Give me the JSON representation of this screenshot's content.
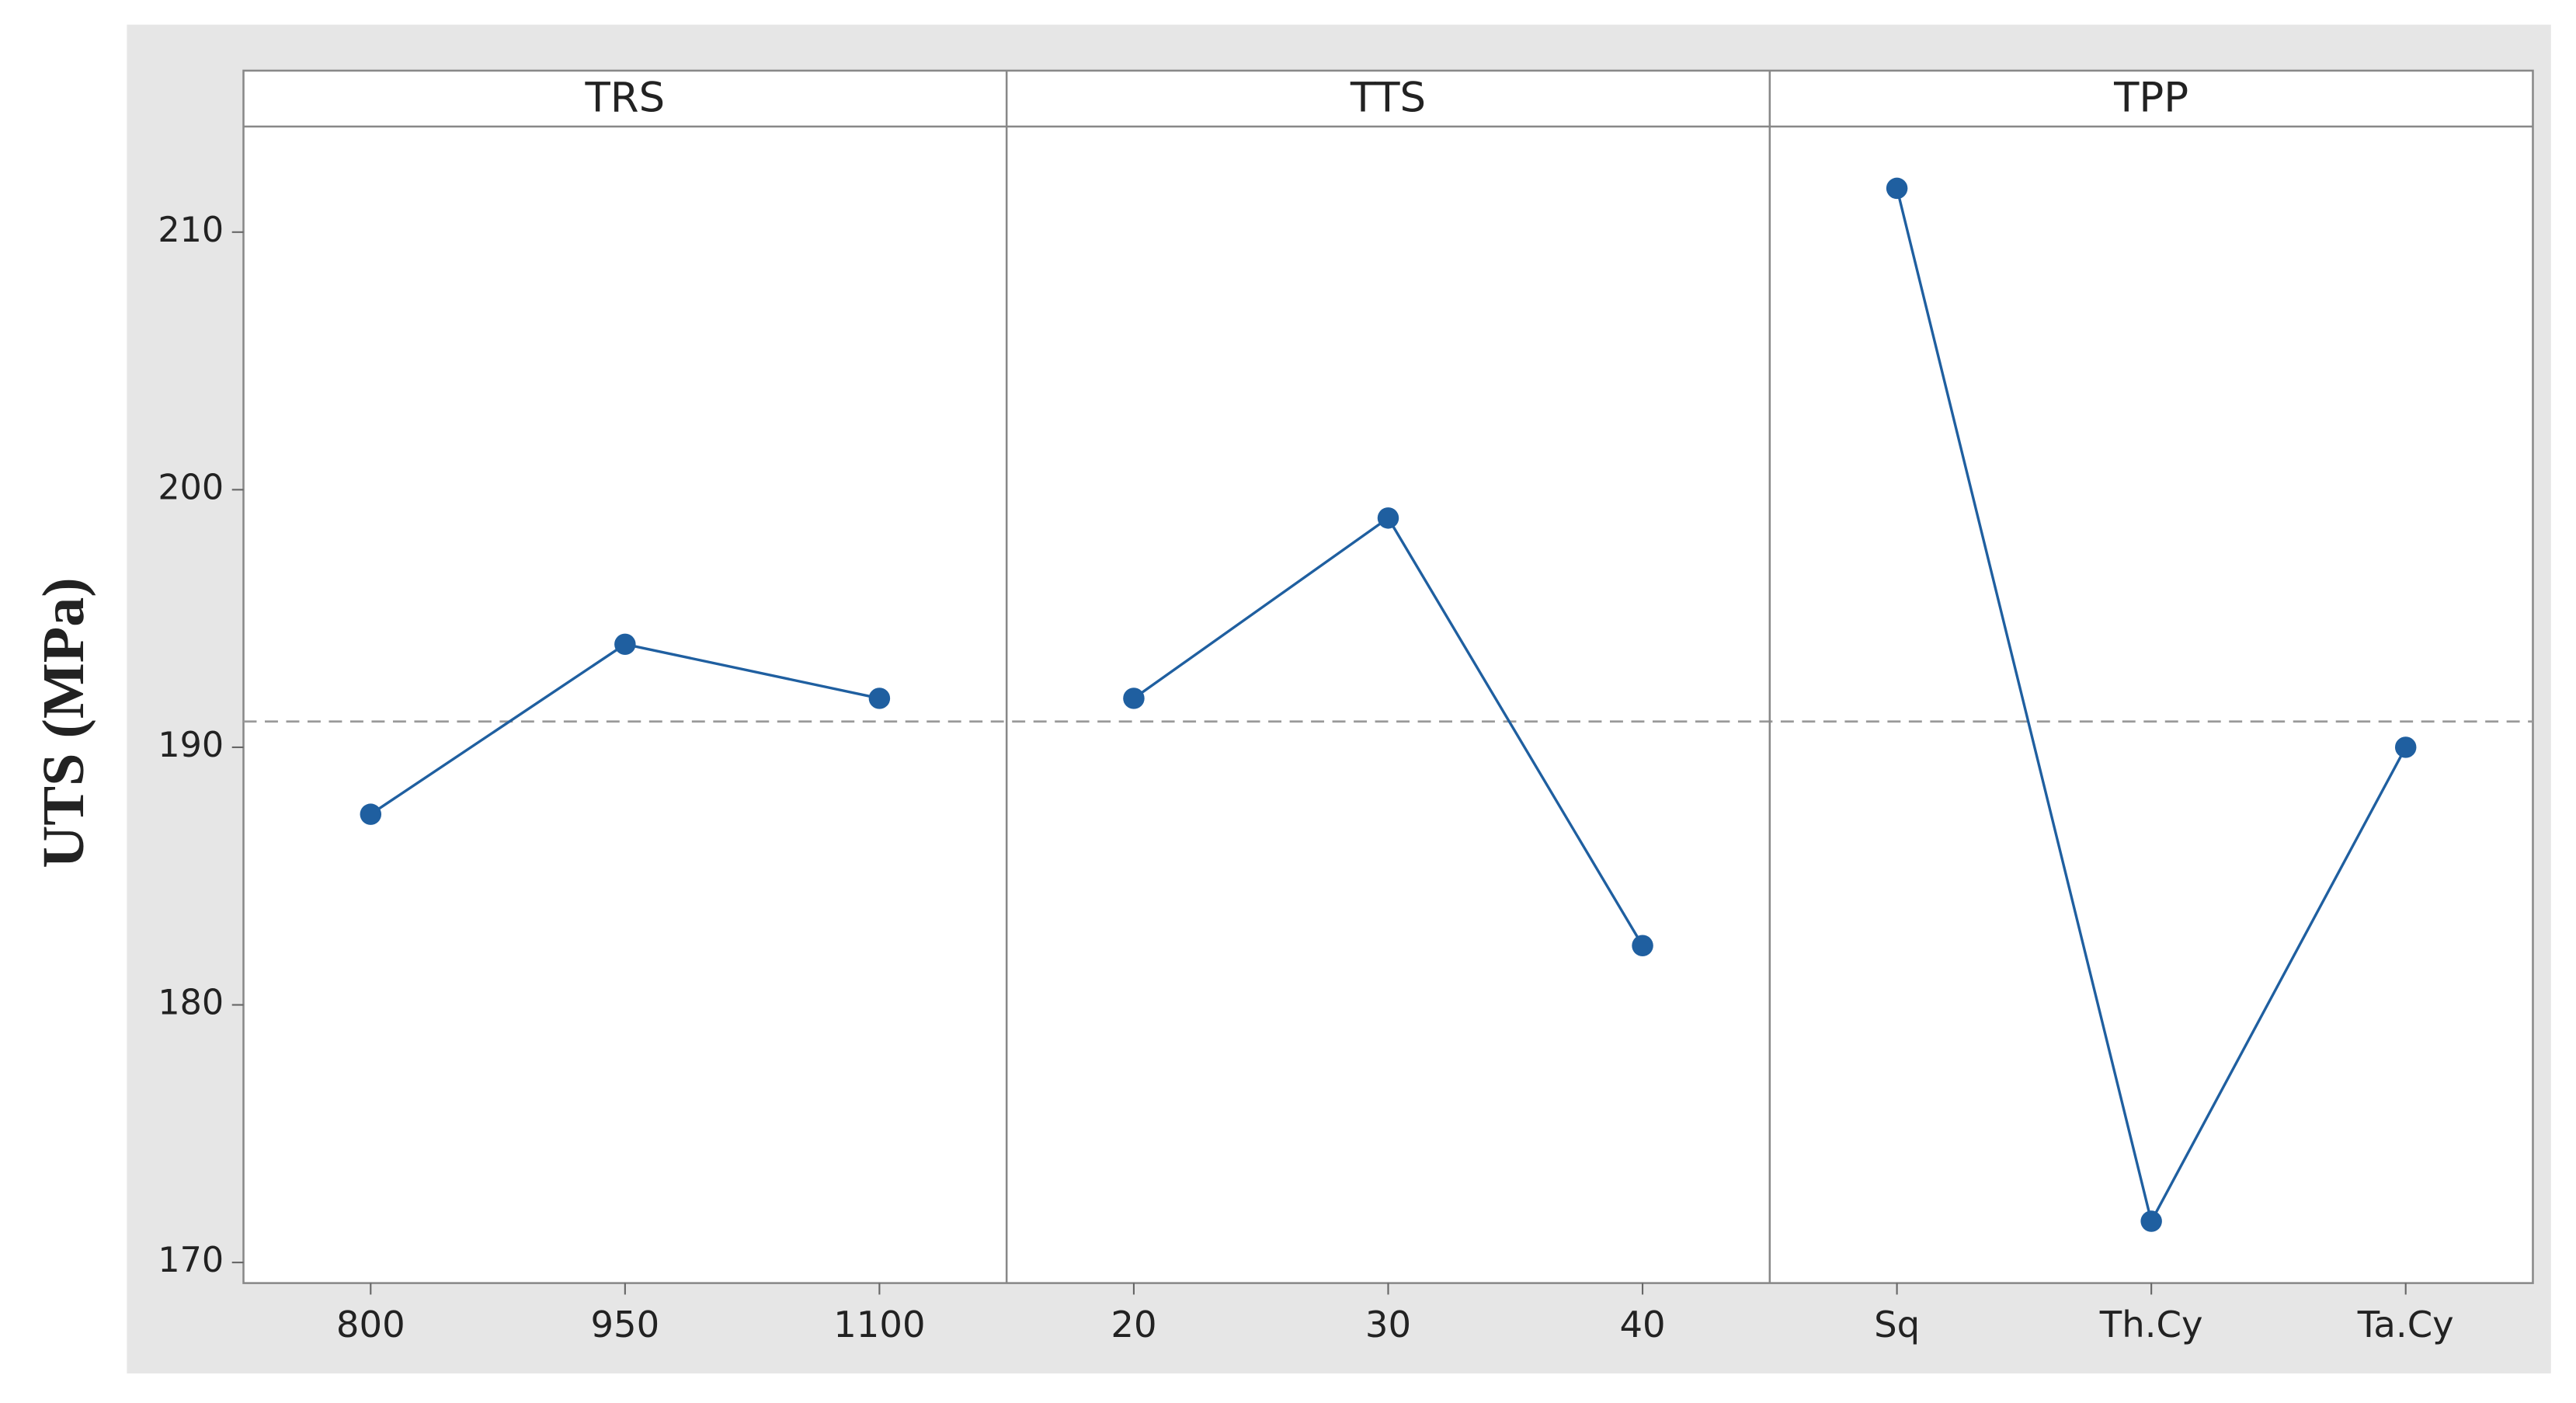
{
  "chart_data": {
    "type": "line",
    "y_label": "UTS (MPa)",
    "ylim": [
      169.2,
      214.1
    ],
    "yticks": [
      170,
      180,
      190,
      200,
      210
    ],
    "reference_line": 191.0,
    "color": "#1f5fa0",
    "panels": [
      {
        "title": "TRS",
        "categories": [
          "800",
          "950",
          "1100"
        ],
        "values": [
          187.4,
          194.0,
          191.9
        ]
      },
      {
        "title": "TTS",
        "categories": [
          "20",
          "30",
          "40"
        ],
        "values": [
          191.9,
          198.9,
          182.3
        ]
      },
      {
        "title": "TPP",
        "categories": [
          "Sq",
          "Th.Cy",
          "Ta.Cy"
        ],
        "values": [
          211.7,
          171.6,
          190.0
        ]
      }
    ]
  }
}
